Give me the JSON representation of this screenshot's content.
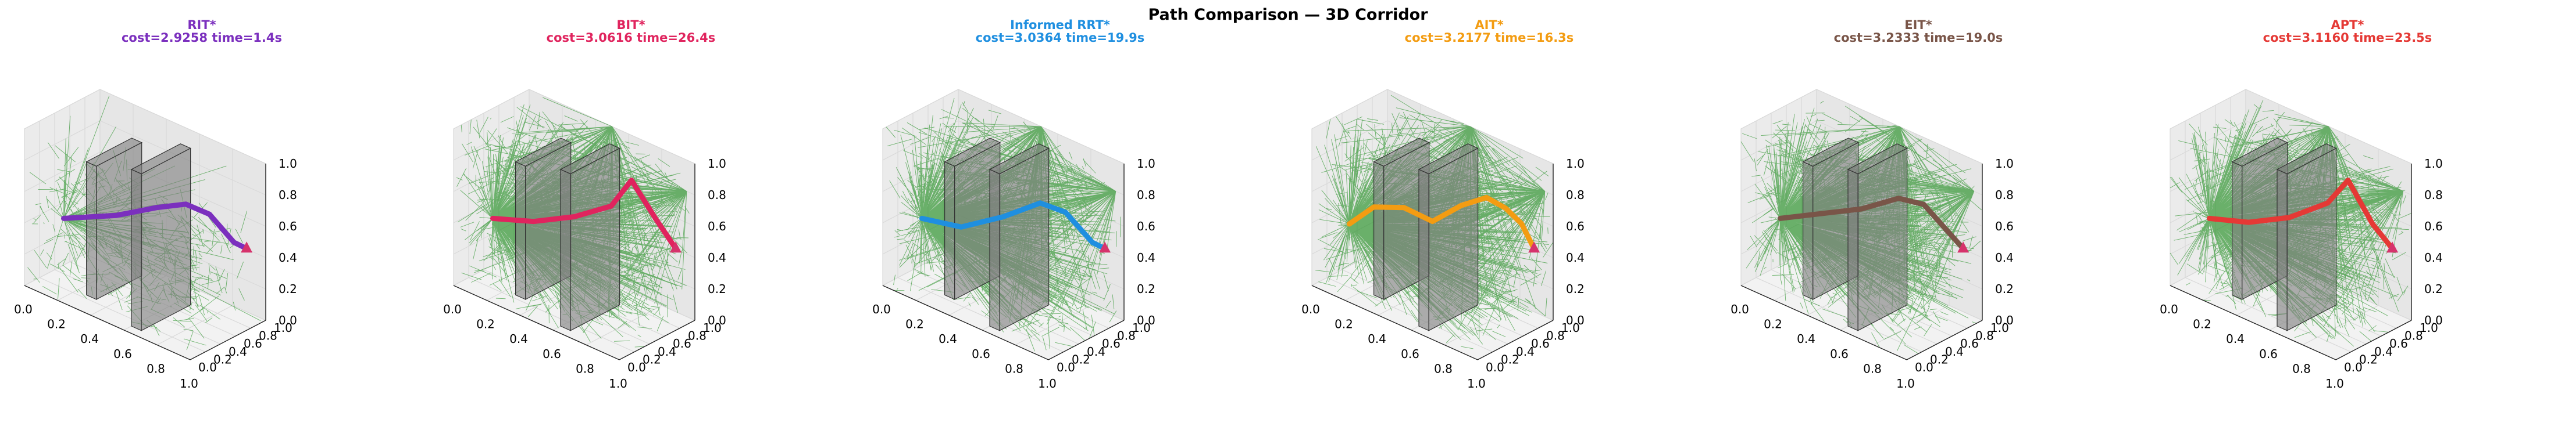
{
  "suptitle": "Path Comparison — 3D Corridor",
  "colors": {
    "tree": "#008000",
    "box_fill": "#808080",
    "box_edge": "#333333",
    "pane": "#f2f2f2",
    "grid": "#d9d9d9",
    "goal_marker": "#d6336c"
  },
  "chart_data": [
    {
      "type": "line",
      "projection": "3d",
      "title_name": "RIT*",
      "title_stats": "cost=2.9258  time=1.4s",
      "color": "#7b2fbe",
      "tree_density": "sparse",
      "path": [
        [
          0.1,
          0.3,
          0.4
        ],
        [
          0.35,
          0.45,
          0.5
        ],
        [
          0.55,
          0.55,
          0.62
        ],
        [
          0.7,
          0.6,
          0.7
        ],
        [
          0.82,
          0.65,
          0.68
        ],
        [
          0.9,
          0.8,
          0.5
        ],
        [
          0.93,
          0.9,
          0.45
        ]
      ],
      "xlim": [
        0,
        1
      ],
      "ylim": [
        0,
        1
      ],
      "zlim": [
        0,
        1
      ],
      "xticks": [
        "0.0",
        "0.2",
        "0.4",
        "0.6",
        "0.8",
        "1.0"
      ],
      "yticks": [
        "0.0",
        "0.2",
        "0.4",
        "0.6",
        "0.8",
        "1.0"
      ],
      "zticks": [
        "0.0",
        "0.2",
        "0.4",
        "0.6",
        "0.8",
        "1.0"
      ]
    },
    {
      "type": "line",
      "projection": "3d",
      "title_name": "BIT*",
      "title_stats": "cost=3.0616  time=26.4s",
      "color": "#e0245e",
      "tree_density": "dense",
      "path": [
        [
          0.1,
          0.3,
          0.4
        ],
        [
          0.3,
          0.4,
          0.45
        ],
        [
          0.5,
          0.5,
          0.55
        ],
        [
          0.7,
          0.55,
          0.7
        ],
        [
          0.8,
          0.6,
          0.9
        ],
        [
          0.88,
          0.75,
          0.65
        ],
        [
          0.93,
          0.9,
          0.45
        ]
      ],
      "xlim": [
        0,
        1
      ],
      "ylim": [
        0,
        1
      ],
      "zlim": [
        0,
        1
      ],
      "xticks": [
        "0.0",
        "0.2",
        "0.4",
        "0.6",
        "0.8",
        "1.0"
      ],
      "yticks": [
        "0.0",
        "0.2",
        "0.4",
        "0.6",
        "0.8",
        "1.0"
      ],
      "zticks": [
        "0.0",
        "0.2",
        "0.4",
        "0.6",
        "0.8",
        "1.0"
      ]
    },
    {
      "type": "line",
      "projection": "3d",
      "title_name": "Informed RRT*",
      "title_stats": "cost=3.0364  time=19.9s",
      "color": "#1f8fe0",
      "tree_density": "dense",
      "path": [
        [
          0.1,
          0.3,
          0.4
        ],
        [
          0.3,
          0.38,
          0.42
        ],
        [
          0.5,
          0.5,
          0.55
        ],
        [
          0.7,
          0.55,
          0.72
        ],
        [
          0.82,
          0.62,
          0.7
        ],
        [
          0.9,
          0.8,
          0.5
        ],
        [
          0.93,
          0.9,
          0.45
        ]
      ],
      "xlim": [
        0,
        1
      ],
      "ylim": [
        0,
        1
      ],
      "zlim": [
        0,
        1
      ],
      "xticks": [
        "0.0",
        "0.2",
        "0.4",
        "0.6",
        "0.8",
        "1.0"
      ],
      "yticks": [
        "0.0",
        "0.2",
        "0.4",
        "0.6",
        "0.8",
        "1.0"
      ],
      "zticks": [
        "0.0",
        "0.2",
        "0.4",
        "0.6",
        "0.8",
        "1.0"
      ]
    },
    {
      "type": "line",
      "projection": "3d",
      "title_name": "AIT*",
      "title_stats": "cost=3.2177  time=16.3s",
      "color": "#f39c12",
      "tree_density": "dense",
      "path": [
        [
          0.08,
          0.32,
          0.35
        ],
        [
          0.2,
          0.38,
          0.5
        ],
        [
          0.35,
          0.45,
          0.55
        ],
        [
          0.5,
          0.5,
          0.52
        ],
        [
          0.65,
          0.55,
          0.68
        ],
        [
          0.78,
          0.6,
          0.78
        ],
        [
          0.85,
          0.7,
          0.72
        ],
        [
          0.9,
          0.8,
          0.62
        ],
        [
          0.93,
          0.9,
          0.45
        ]
      ],
      "xlim": [
        0,
        1
      ],
      "ylim": [
        0,
        1
      ],
      "zlim": [
        0,
        1
      ],
      "xticks": [
        "0.0",
        "0.2",
        "0.4",
        "0.6",
        "0.8",
        "1.0"
      ],
      "yticks": [
        "0.0",
        "0.2",
        "0.4",
        "0.6",
        "0.8",
        "1.0"
      ],
      "zticks": [
        "0.0",
        "0.2",
        "0.4",
        "0.6",
        "0.8",
        "1.0"
      ]
    },
    {
      "type": "line",
      "projection": "3d",
      "title_name": "EIT*",
      "title_stats": "cost=3.2333  time=19.0s",
      "color": "#795548",
      "tree_density": "dense",
      "path": [
        [
          0.1,
          0.3,
          0.4
        ],
        [
          0.3,
          0.4,
          0.5
        ],
        [
          0.5,
          0.5,
          0.6
        ],
        [
          0.7,
          0.55,
          0.75
        ],
        [
          0.82,
          0.62,
          0.75
        ],
        [
          0.9,
          0.8,
          0.55
        ],
        [
          0.93,
          0.9,
          0.45
        ]
      ],
      "xlim": [
        0,
        1
      ],
      "ylim": [
        0,
        1
      ],
      "zlim": [
        0,
        1
      ],
      "xticks": [
        "0.0",
        "0.2",
        "0.4",
        "0.6",
        "0.8",
        "1.0"
      ],
      "yticks": [
        "0.0",
        "0.2",
        "0.4",
        "0.6",
        "0.8",
        "1.0"
      ],
      "zticks": [
        "0.0",
        "0.2",
        "0.4",
        "0.6",
        "0.8",
        "1.0"
      ]
    },
    {
      "type": "line",
      "projection": "3d",
      "title_name": "APT*",
      "title_stats": "cost=3.1160  time=23.5s",
      "color": "#e53935",
      "tree_density": "dense",
      "path": [
        [
          0.1,
          0.3,
          0.4
        ],
        [
          0.3,
          0.38,
          0.45
        ],
        [
          0.5,
          0.48,
          0.55
        ],
        [
          0.7,
          0.55,
          0.72
        ],
        [
          0.8,
          0.6,
          0.9
        ],
        [
          0.88,
          0.75,
          0.62
        ],
        [
          0.93,
          0.9,
          0.45
        ]
      ],
      "xlim": [
        0,
        1
      ],
      "ylim": [
        0,
        1
      ],
      "zlim": [
        0,
        1
      ],
      "xticks": [
        "0.0",
        "0.2",
        "0.4",
        "0.6",
        "0.8",
        "1.0"
      ],
      "yticks": [
        "0.0",
        "0.2",
        "0.4",
        "0.6",
        "0.8",
        "1.0"
      ],
      "zticks": [
        "0.0",
        "0.2",
        "0.4",
        "0.6",
        "0.8",
        "1.0"
      ]
    }
  ]
}
